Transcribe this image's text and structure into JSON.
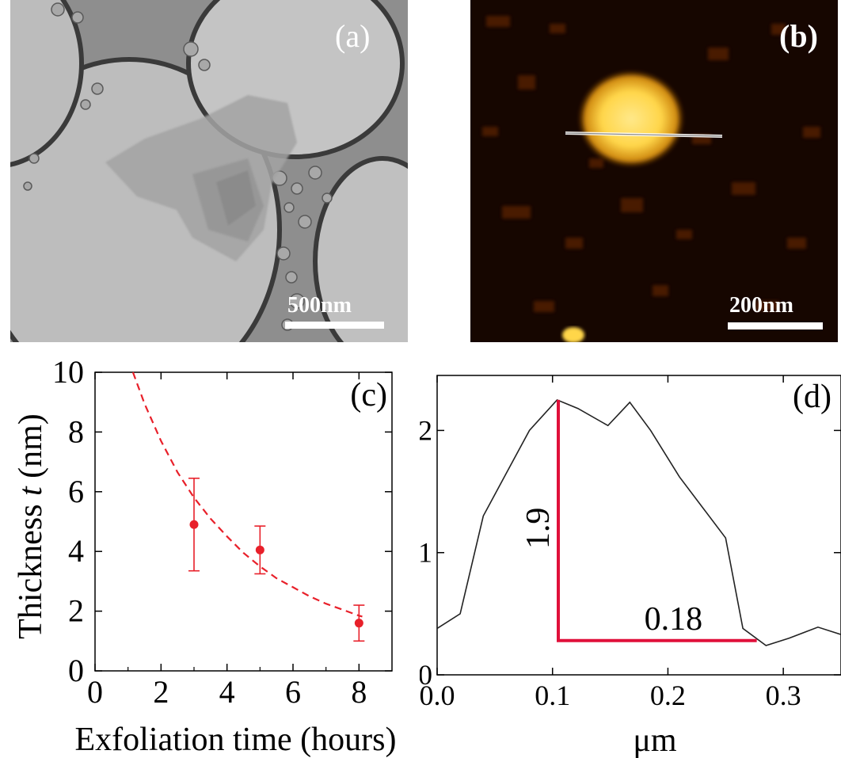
{
  "panel_a": {
    "label": "(a)",
    "scale_bar": "500nm"
  },
  "panel_b": {
    "label": "(b)",
    "scale_bar": "200nm"
  },
  "colors": {
    "fit_red": "#e8202a",
    "marker_red": "#e8202a",
    "profile_black": "#222222",
    "annotation_red": "#e0103a"
  },
  "chart_data": [
    {
      "panel": "(c)",
      "type": "scatter",
      "xlabel": "Exfoliation time (hours)",
      "ylabel_prefix": "Thickness ",
      "ylabel_var": "t",
      "ylabel_unit": " (nm)",
      "xlim": [
        0,
        9
      ],
      "ylim": [
        0,
        10
      ],
      "xticks": [
        0,
        2,
        4,
        6,
        8
      ],
      "yticks": [
        0,
        2,
        4,
        6,
        8,
        10
      ],
      "points": [
        {
          "x": 3,
          "y": 4.9,
          "err": 1.55
        },
        {
          "x": 5,
          "y": 4.05,
          "err": 0.8
        },
        {
          "x": 8,
          "y": 1.6,
          "err": 0.6
        }
      ],
      "fit": {
        "style": "dashed",
        "x": [
          1.15,
          1.5,
          2,
          2.5,
          3,
          3.5,
          4,
          4.5,
          5,
          5.5,
          6,
          6.5,
          7,
          7.5,
          8,
          8.1
        ],
        "y": [
          10.0,
          8.95,
          7.7,
          6.65,
          5.8,
          5.1,
          4.5,
          3.95,
          3.5,
          3.1,
          2.8,
          2.5,
          2.25,
          2.05,
          1.85,
          1.82
        ]
      }
    },
    {
      "panel": "(d)",
      "type": "line",
      "xlabel": "μm",
      "ylabel": "",
      "xlim": [
        0,
        0.35
      ],
      "ylim": [
        0,
        2.45
      ],
      "xticks": [
        "0.0",
        "0.1",
        "0.2",
        "0.3"
      ],
      "xtick_values": [
        0,
        0.1,
        0.2,
        0.3
      ],
      "yticks": [
        0,
        1,
        2
      ],
      "series": [
        {
          "x": [
            0,
            0.02,
            0.04,
            0.06,
            0.08,
            0.104,
            0.122,
            0.148,
            0.167,
            0.185,
            0.21,
            0.25,
            0.265,
            0.285,
            0.305,
            0.33,
            0.35
          ],
          "y": [
            0.38,
            0.5,
            1.3,
            1.65,
            2.0,
            2.25,
            2.18,
            2.04,
            2.23,
            2.0,
            1.62,
            1.12,
            0.38,
            0.24,
            0.3,
            0.39,
            0.33
          ]
        }
      ],
      "annotation": {
        "vertical_label": "1.9",
        "horizontal_label": "0.18",
        "corner_x": 0.105,
        "top_y": 2.25,
        "base_y": 0.28,
        "end_x": 0.277
      }
    }
  ]
}
